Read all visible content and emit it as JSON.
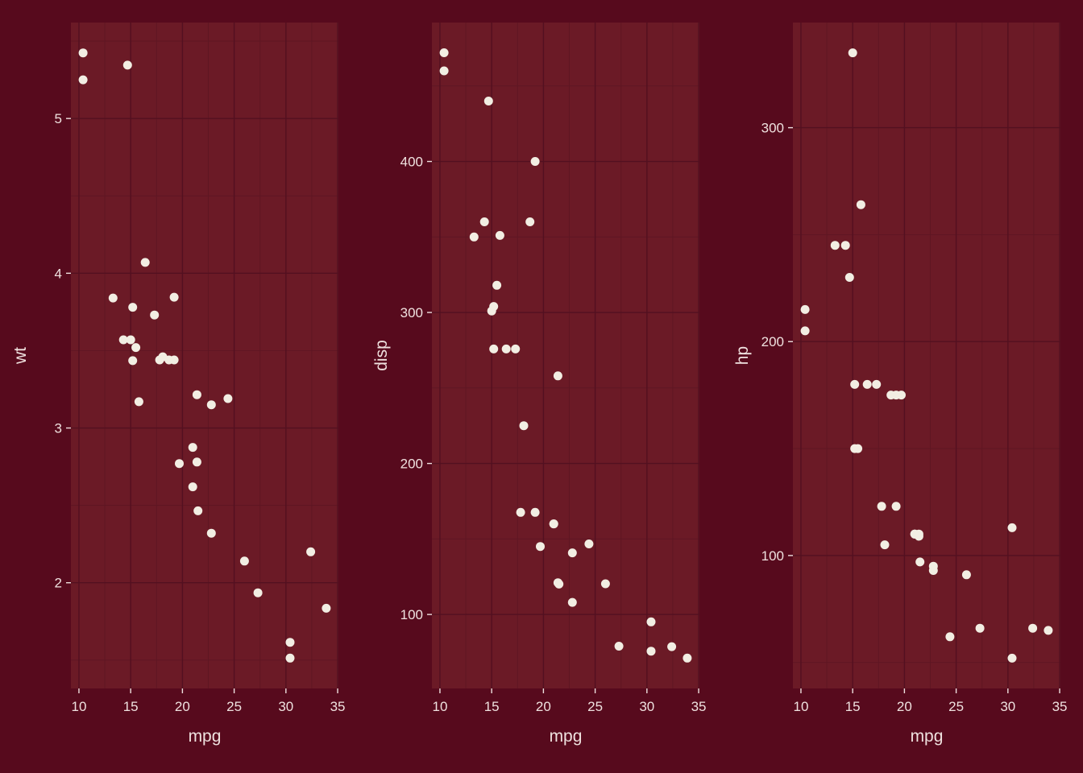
{
  "theme": {
    "background": "#570a1d",
    "panel_background": "#6b1a26",
    "grid_major_color": "#531020",
    "grid_minor_color": "#5e1623",
    "point_color": "#f2eee3",
    "text_color": "#efe1df",
    "tick_label_size": 17,
    "axis_label_size": 21,
    "point_radius": 5.5
  },
  "chart_data": [
    {
      "type": "scatter",
      "title": "",
      "xlabel": "mpg",
      "ylabel": "wt",
      "xlim": [
        9.225,
        35.075
      ],
      "ylim": [
        1.317,
        5.62
      ],
      "xticks": [
        10,
        15,
        20,
        25,
        30,
        35
      ],
      "yticks": [
        2,
        3,
        4,
        5
      ],
      "grid": true,
      "legend": "none",
      "x": [
        21.0,
        21.0,
        22.8,
        21.4,
        18.7,
        18.1,
        14.3,
        24.4,
        22.8,
        19.2,
        17.8,
        16.4,
        17.3,
        15.2,
        10.4,
        10.4,
        14.7,
        32.4,
        30.4,
        33.9,
        21.5,
        15.5,
        15.2,
        13.3,
        19.2,
        27.3,
        26.0,
        30.4,
        15.8,
        19.7,
        15.0,
        21.4
      ],
      "y": [
        2.62,
        2.875,
        2.32,
        3.215,
        3.44,
        3.46,
        3.57,
        3.19,
        3.15,
        3.44,
        3.44,
        4.07,
        3.73,
        3.78,
        5.25,
        5.424,
        5.345,
        2.2,
        1.615,
        1.835,
        2.465,
        3.52,
        3.435,
        3.84,
        3.845,
        1.935,
        2.14,
        1.513,
        3.17,
        2.77,
        3.57,
        2.78
      ]
    },
    {
      "type": "scatter",
      "title": "",
      "xlabel": "mpg",
      "ylabel": "disp",
      "xlim": [
        9.225,
        35.075
      ],
      "ylim": [
        51.0,
        492.0
      ],
      "xticks": [
        10,
        15,
        20,
        25,
        30,
        35
      ],
      "yticks": [
        100,
        200,
        300,
        400
      ],
      "grid": true,
      "legend": "none",
      "x": [
        21.0,
        21.0,
        22.8,
        21.4,
        18.7,
        18.1,
        14.3,
        24.4,
        22.8,
        19.2,
        17.8,
        16.4,
        17.3,
        15.2,
        10.4,
        10.4,
        14.7,
        32.4,
        30.4,
        33.9,
        21.5,
        15.5,
        15.2,
        13.3,
        19.2,
        27.3,
        26.0,
        30.4,
        15.8,
        19.7,
        15.0,
        21.4
      ],
      "y": [
        160.0,
        160.0,
        108.0,
        258.0,
        360.0,
        225.0,
        360.0,
        146.7,
        140.8,
        167.6,
        167.6,
        275.8,
        275.8,
        275.8,
        472.0,
        460.0,
        440.0,
        78.7,
        75.7,
        71.1,
        120.1,
        318.0,
        304.0,
        350.0,
        400.0,
        79.0,
        120.3,
        95.1,
        351.0,
        145.0,
        301.0,
        121.0
      ]
    },
    {
      "type": "scatter",
      "title": "",
      "xlabel": "mpg",
      "ylabel": "hp",
      "xlim": [
        9.225,
        35.075
      ],
      "ylim": [
        37.85,
        349.15
      ],
      "xticks": [
        10,
        15,
        20,
        25,
        30,
        35
      ],
      "yticks": [
        100,
        200,
        300
      ],
      "grid": true,
      "legend": "none",
      "x": [
        21.0,
        21.0,
        22.8,
        21.4,
        18.7,
        18.1,
        14.3,
        24.4,
        22.8,
        19.2,
        17.8,
        16.4,
        17.3,
        15.2,
        10.4,
        10.4,
        14.7,
        32.4,
        30.4,
        33.9,
        21.5,
        15.5,
        15.2,
        13.3,
        19.2,
        27.3,
        26.0,
        30.4,
        15.8,
        19.7,
        15.0,
        21.4
      ],
      "y": [
        110,
        110,
        93,
        110,
        175,
        105,
        245,
        62,
        95,
        123,
        123,
        180,
        180,
        180,
        205,
        215,
        230,
        66,
        52,
        65,
        97,
        150,
        150,
        245,
        175,
        66,
        91,
        113,
        264,
        175,
        335,
        109
      ]
    }
  ]
}
